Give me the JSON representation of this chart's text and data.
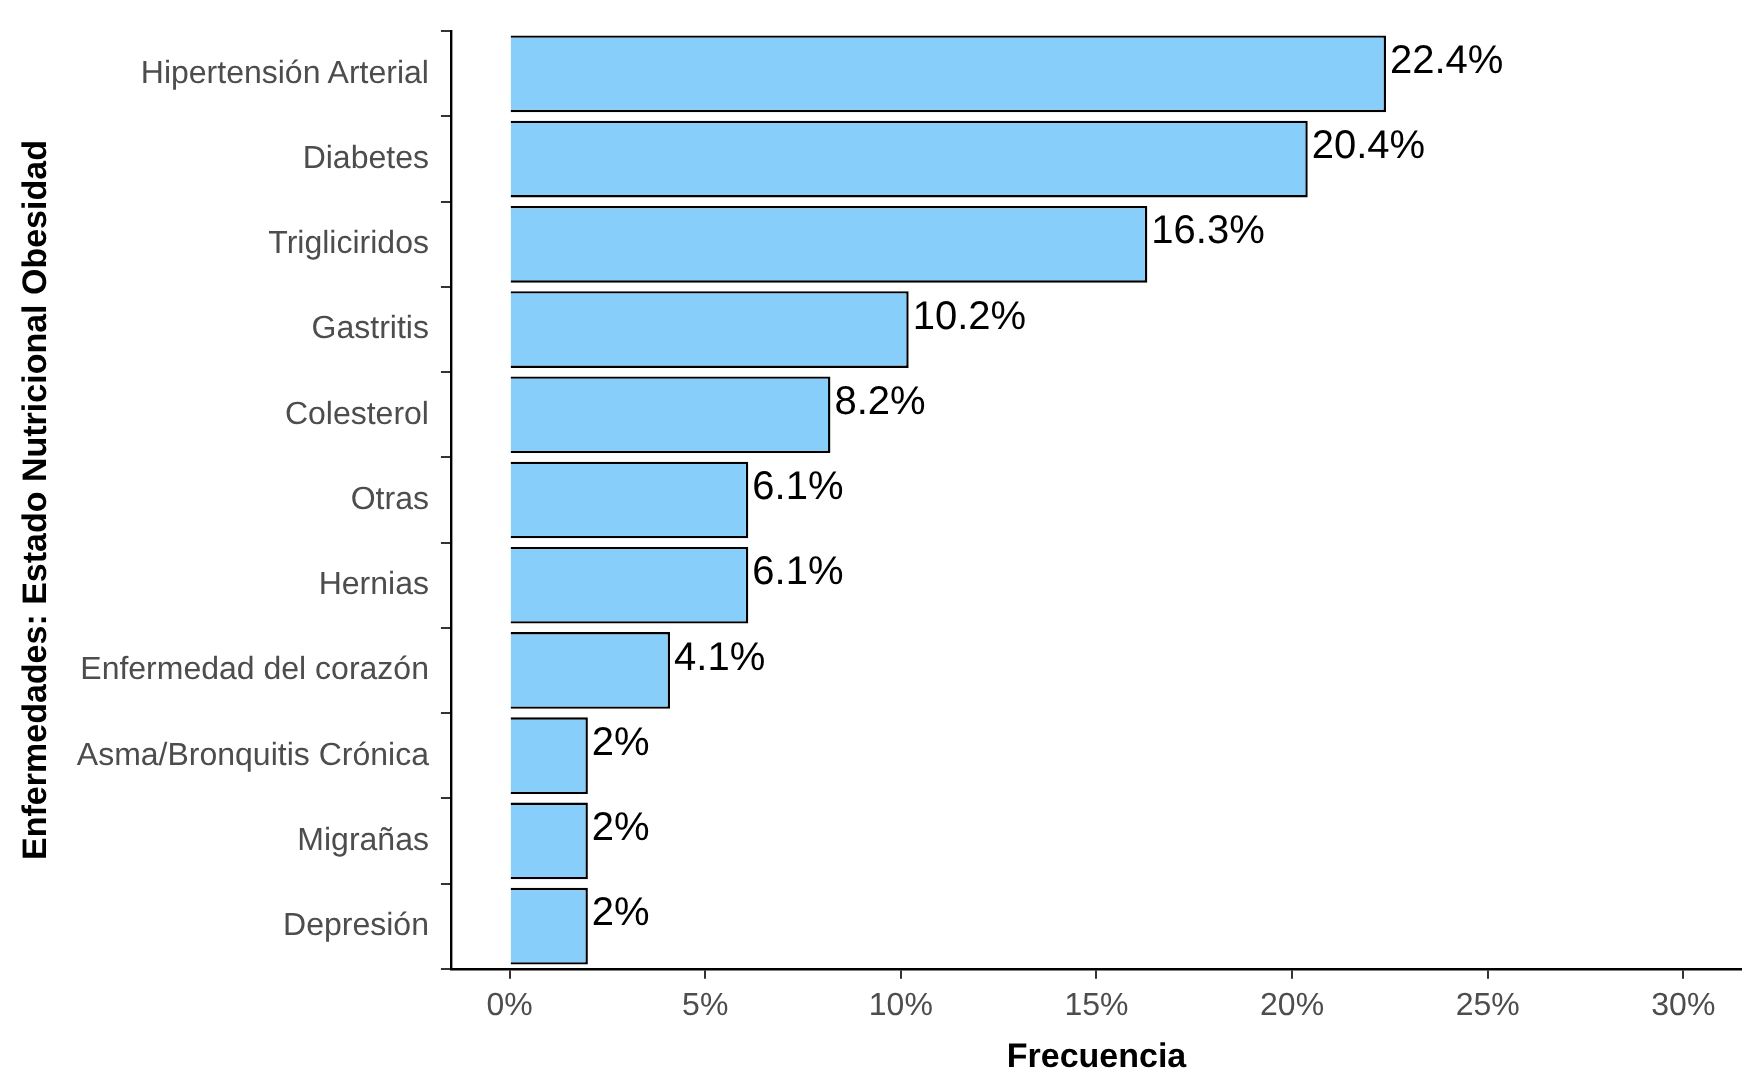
{
  "chart_data": {
    "type": "bar",
    "orientation": "horizontal",
    "xlabel": "Frecuencia",
    "ylabel": "Enfermedades: Estado Nutricional Obesidad",
    "categories": [
      "Hipertensión Arterial",
      "Diabetes",
      "Trigliciridos",
      "Gastritis",
      "Colesterol",
      "Otras",
      "Hernias",
      "Enfermedad del corazón",
      "Asma/Bronquitis Crónica",
      "Migrañas",
      "Depresión"
    ],
    "values": [
      22.4,
      20.4,
      16.3,
      10.2,
      8.2,
      6.1,
      6.1,
      4.1,
      2,
      2,
      2
    ],
    "value_labels": [
      "22.4%",
      "20.4%",
      "16.3%",
      "10.2%",
      "8.2%",
      "6.1%",
      "6.1%",
      "4.1%",
      "2%",
      "2%",
      "2%"
    ],
    "color": "#87cefa",
    "xlim": [
      -1.5,
      31.5
    ],
    "xticks": [
      {
        "value": 0,
        "label": "0%"
      },
      {
        "value": 5,
        "label": "5%"
      },
      {
        "value": 10,
        "label": "10%"
      },
      {
        "value": 15,
        "label": "15%"
      },
      {
        "value": 20,
        "label": "20%"
      },
      {
        "value": 25,
        "label": "25%"
      },
      {
        "value": 30,
        "label": "30%"
      }
    ],
    "grid": false,
    "legend": false
  }
}
